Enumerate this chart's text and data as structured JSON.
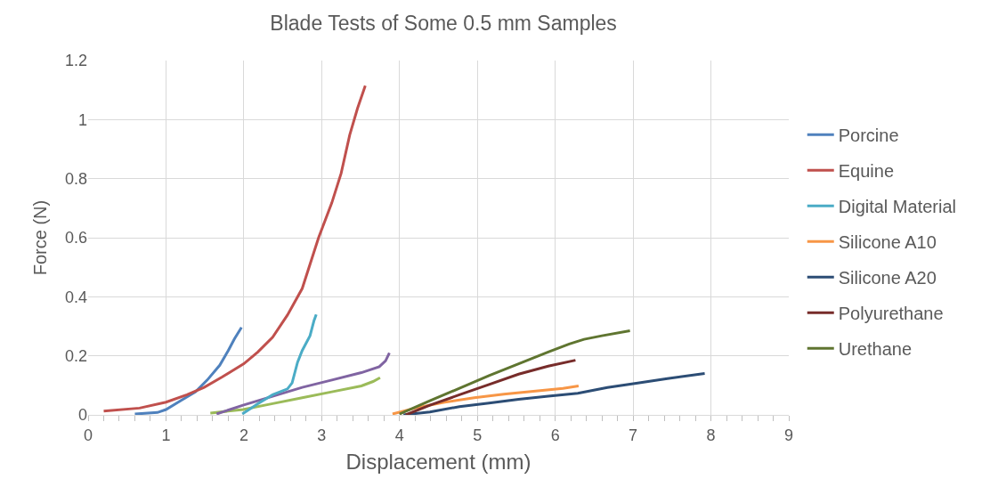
{
  "chart_data": {
    "type": "line",
    "title": "Blade Tests of Some 0.5 mm Samples",
    "xlabel": "Displacement (mm)",
    "ylabel": "Force (N)",
    "xlim": [
      0,
      9
    ],
    "ylim": [
      0,
      1.2
    ],
    "xticks": [
      0,
      1,
      2,
      3,
      4,
      5,
      6,
      7,
      8,
      9,
      {
        "value": 0.2,
        "label": null
      },
      {
        "value": 0.4,
        "label": null
      },
      {
        "value": 0.6,
        "label": null
      },
      {
        "value": 0.8,
        "label": null
      },
      {
        "value": 1.2,
        "label": null
      },
      {
        "value": 1.4,
        "label": null
      },
      {
        "value": 1.6,
        "label": null
      },
      {
        "value": 1.8,
        "label": null
      },
      {
        "value": 2.2,
        "label": null
      },
      {
        "value": 2.4,
        "label": null
      },
      {
        "value": 2.6,
        "label": null
      },
      {
        "value": 2.8,
        "label": null
      },
      {
        "value": 3.2,
        "label": null
      },
      {
        "value": 3.4,
        "label": null
      },
      {
        "value": 3.6,
        "label": null
      },
      {
        "value": 3.8,
        "label": null
      },
      {
        "value": 4.2,
        "label": null
      },
      {
        "value": 4.4,
        "label": null
      },
      {
        "value": 4.6,
        "label": null
      },
      {
        "value": 4.8,
        "label": null
      },
      {
        "value": 5.2,
        "label": null
      },
      {
        "value": 5.4,
        "label": null
      },
      {
        "value": 5.6,
        "label": null
      },
      {
        "value": 5.8,
        "label": null
      },
      {
        "value": 6.2,
        "label": null
      },
      {
        "value": 6.4,
        "label": null
      },
      {
        "value": 6.6,
        "label": null
      },
      {
        "value": 6.8,
        "label": null
      },
      {
        "value": 7.2,
        "label": null
      },
      {
        "value": 7.4,
        "label": null
      },
      {
        "value": 7.6,
        "label": null
      },
      {
        "value": 7.8,
        "label": null
      },
      {
        "value": 8.2,
        "label": null
      },
      {
        "value": 8.4,
        "label": null
      },
      {
        "value": 8.6,
        "label": null
      },
      {
        "value": 8.8,
        "label": null
      }
    ],
    "yticks": [
      0,
      0.2,
      0.4,
      0.6,
      0.8,
      1,
      1.2
    ],
    "grid": true,
    "legend": "right",
    "marker": "none",
    "line_style": "solid",
    "series": [
      {
        "name": "Porcine",
        "color": "#4f81bd",
        "x": [
          0.6,
          0.89,
          1.0,
          1.19,
          1.38,
          1.53,
          1.69,
          1.8,
          1.88,
          1.97
        ],
        "values": [
          0.003,
          0.008,
          0.018,
          0.048,
          0.078,
          0.118,
          0.168,
          0.218,
          0.258,
          0.296
        ]
      },
      {
        "name": "Equine",
        "color": "#c0504d",
        "x": [
          0.2,
          0.66,
          1.0,
          1.27,
          1.49,
          1.72,
          2.0,
          2.18,
          2.37,
          2.56,
          2.75,
          2.96,
          3.13,
          3.25,
          3.36,
          3.46,
          3.56
        ],
        "values": [
          0.013,
          0.023,
          0.043,
          0.068,
          0.093,
          0.128,
          0.173,
          0.213,
          0.263,
          0.338,
          0.428,
          0.6,
          0.718,
          0.818,
          0.948,
          1.038,
          1.115
        ]
      },
      {
        "color": "#9bbb59",
        "x": [
          1.57,
          1.99,
          2.37,
          2.75,
          3.13,
          3.51,
          3.66,
          3.75
        ],
        "values": [
          0.006,
          0.018,
          0.038,
          0.058,
          0.078,
          0.098,
          0.113,
          0.126
        ]
      },
      {
        "color": "#8064a2",
        "x": [
          1.65,
          1.99,
          2.37,
          2.75,
          3.13,
          3.51,
          3.74,
          3.82,
          3.87
        ],
        "values": [
          0.003,
          0.033,
          0.063,
          0.093,
          0.118,
          0.143,
          0.163,
          0.183,
          0.21
        ]
      },
      {
        "name": "Digital Material",
        "color": "#4bacc6",
        "x": [
          1.98,
          2.18,
          2.37,
          2.56,
          2.62,
          2.69,
          2.75,
          2.85,
          2.9,
          2.93
        ],
        "values": [
          0.003,
          0.038,
          0.068,
          0.088,
          0.108,
          0.178,
          0.218,
          0.268,
          0.318,
          0.34
        ]
      },
      {
        "name": "Silicone A10",
        "color": "#f79646",
        "x": [
          3.91,
          4.2,
          4.58,
          4.96,
          5.34,
          5.72,
          6.1,
          6.3
        ],
        "values": [
          0.003,
          0.023,
          0.043,
          0.058,
          0.07,
          0.08,
          0.09,
          0.098
        ]
      },
      {
        "name": "Silicone A20",
        "color": "#2c4d75",
        "x": [
          4.05,
          4.39,
          4.77,
          5.15,
          5.53,
          5.91,
          6.29,
          6.67,
          7.06,
          7.44,
          7.92
        ],
        "values": [
          0.0,
          0.01,
          0.028,
          0.04,
          0.053,
          0.063,
          0.073,
          0.093,
          0.108,
          0.123,
          0.14
        ]
      },
      {
        "name": "Polyurethane",
        "color": "#772c2a",
        "x": [
          4.08,
          4.39,
          4.77,
          5.15,
          5.53,
          5.91,
          6.26
        ],
        "values": [
          0.0,
          0.033,
          0.068,
          0.103,
          0.138,
          0.165,
          0.185
        ]
      },
      {
        "name": "Urethane",
        "color": "#5f7530",
        "x": [
          4.0,
          4.39,
          4.77,
          5.15,
          5.53,
          5.91,
          6.18,
          6.37,
          6.6,
          6.96
        ],
        "values": [
          0.003,
          0.048,
          0.09,
          0.133,
          0.173,
          0.213,
          0.24,
          0.256,
          0.268,
          0.285
        ]
      }
    ]
  }
}
